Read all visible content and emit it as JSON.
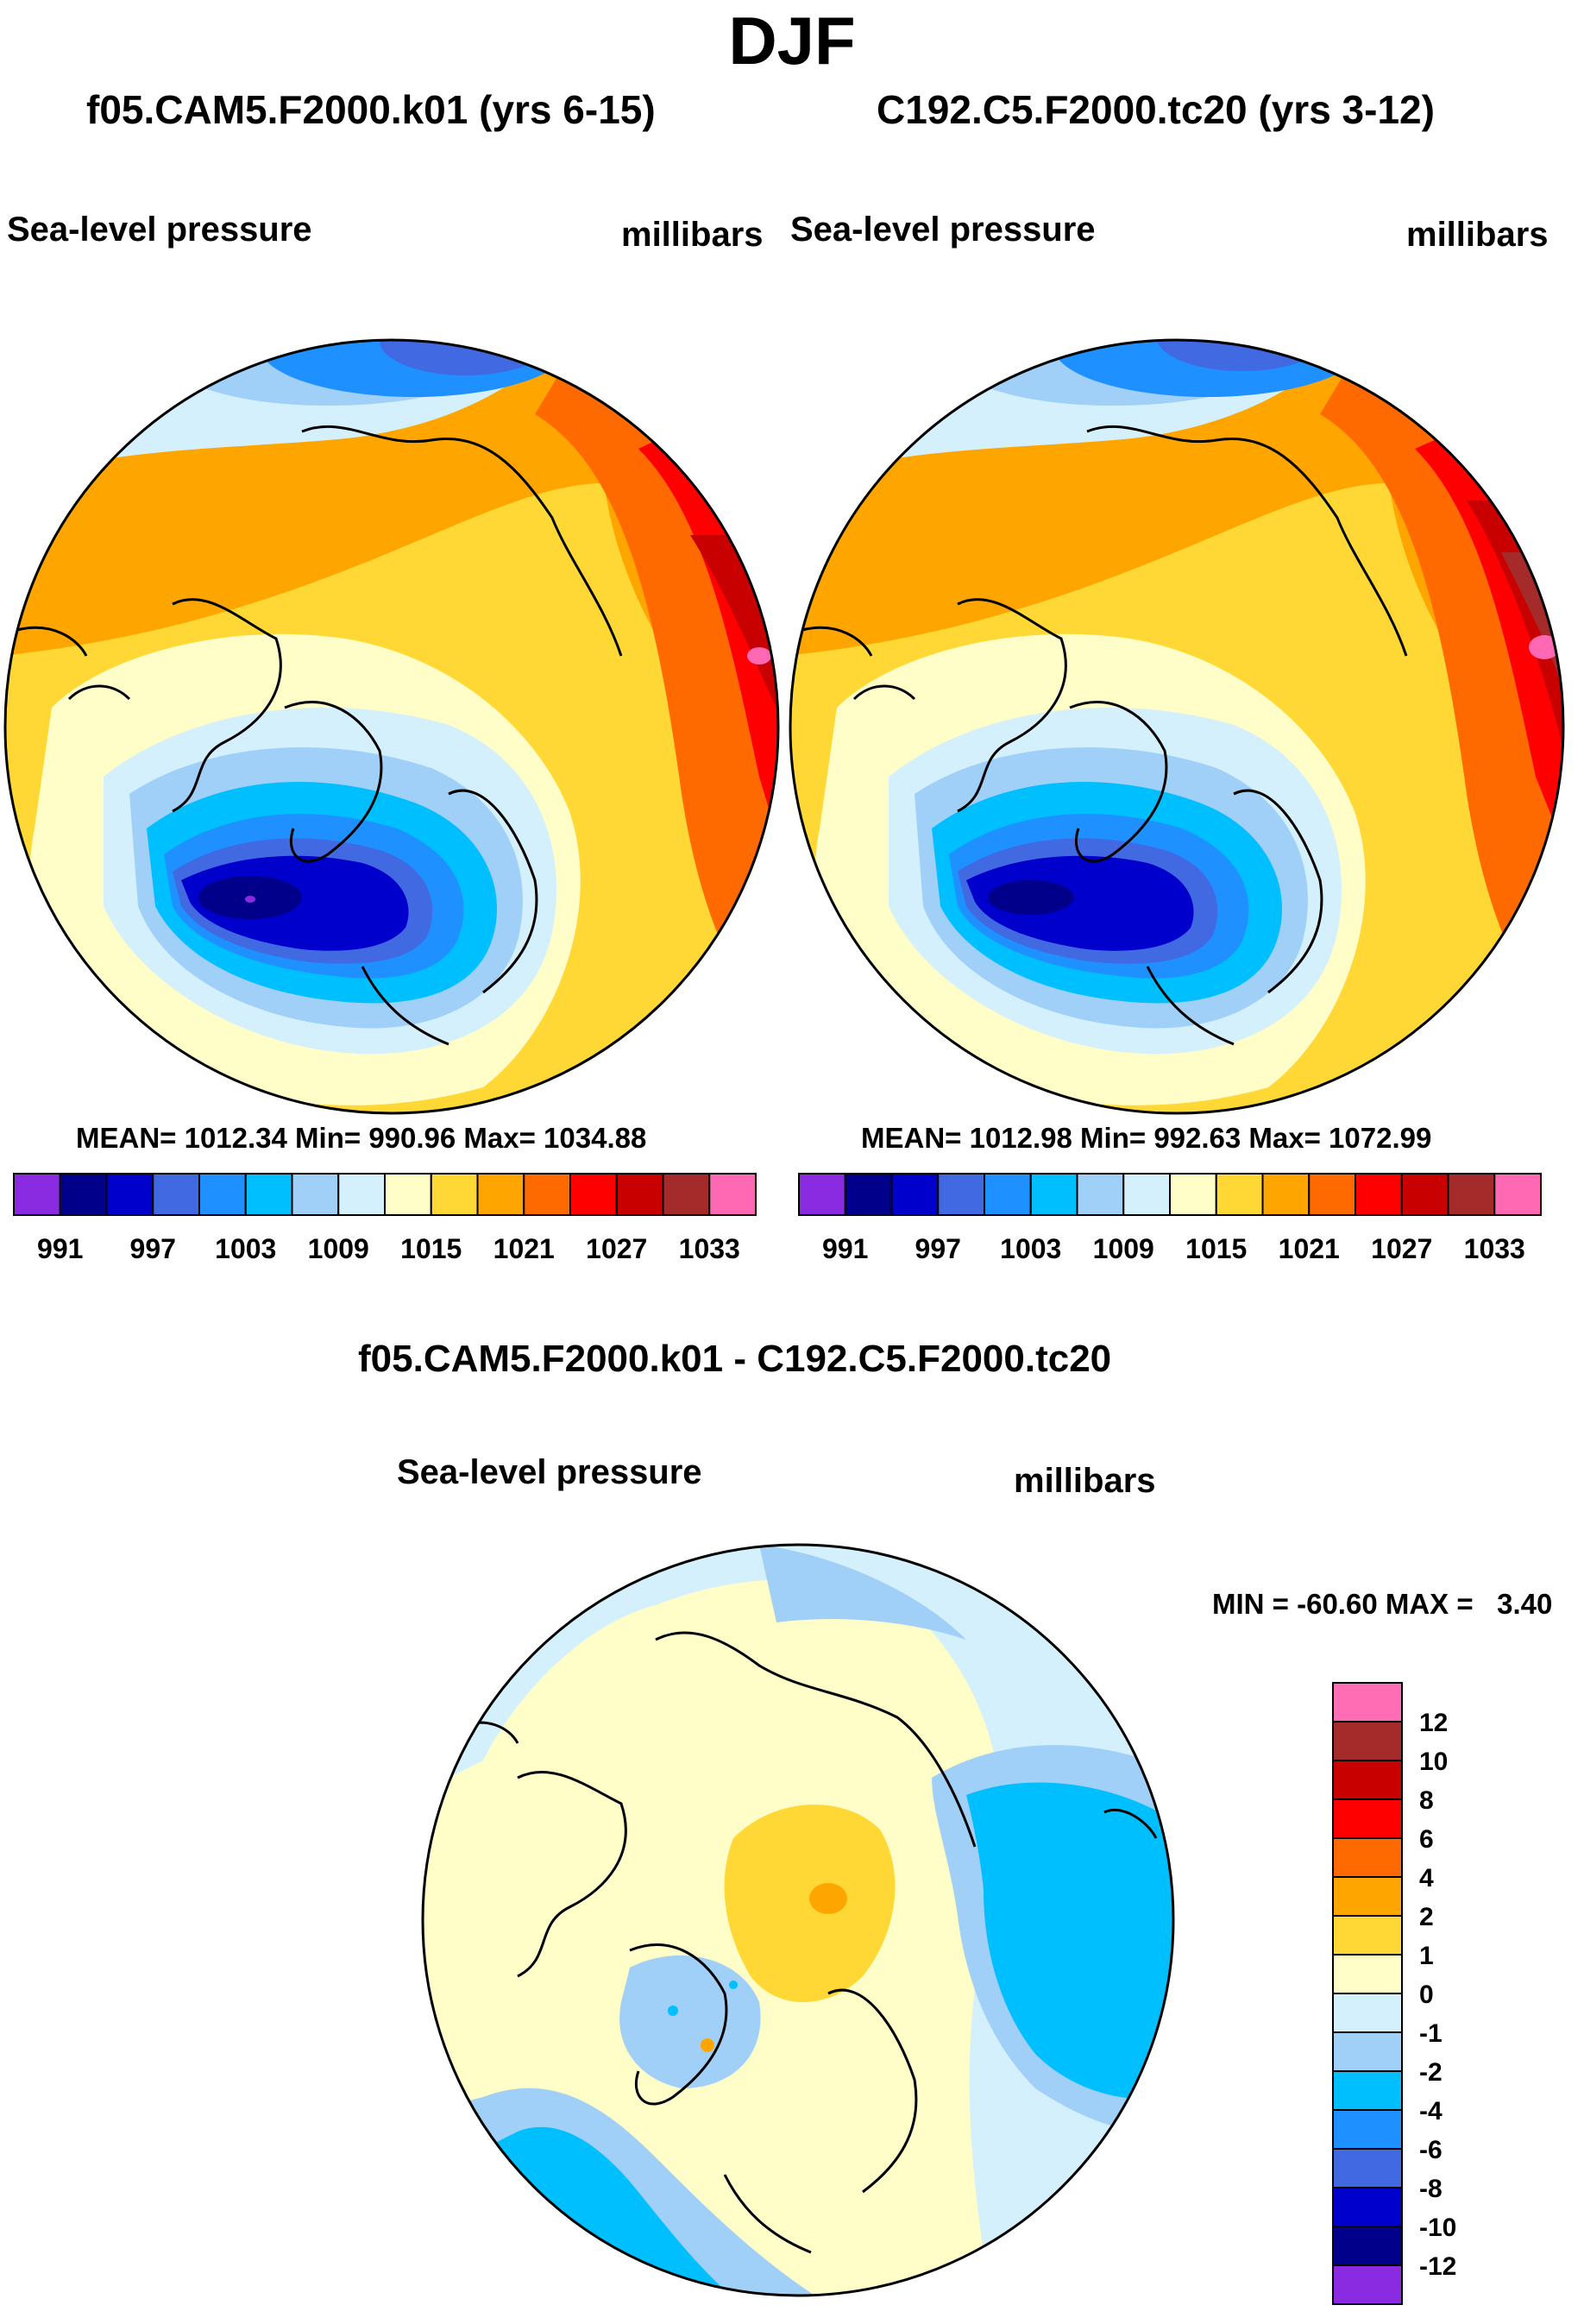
{
  "page_title": "DJF",
  "chart_data": [
    {
      "type": "contour-map",
      "projection": "north-polar-stereographic",
      "title": "f05.CAM5.F2000.k01 (yrs 6-15)",
      "left_label": "Sea-level pressure",
      "right_label": "millibars",
      "stats": {
        "mean": 1012.34,
        "min": 990.96,
        "max": 1034.88
      },
      "stats_text": "MEAN= 1012.34  Min= 990.96  Max= 1034.88",
      "colorbar": {
        "levels": [
          991,
          994,
          997,
          1000,
          1003,
          1006,
          1009,
          1012,
          1015,
          1018,
          1021,
          1024,
          1027,
          1030,
          1033
        ],
        "tick_labels": [
          "991",
          "997",
          "1003",
          "1009",
          "1015",
          "1021",
          "1027",
          "1033"
        ]
      },
      "features": {
        "aleutian_low": "deep blue",
        "icelandic_low": "deep blue, min ~991",
        "siberian_high": "red/pink ~1033"
      }
    },
    {
      "type": "contour-map",
      "projection": "north-polar-stereographic",
      "title": "C192.C5.F2000.tc20 (yrs 3-12)",
      "left_label": "Sea-level pressure",
      "right_label": "millibars",
      "stats": {
        "mean": 1012.98,
        "min": 992.63,
        "max": 1072.99
      },
      "stats_text": "MEAN= 1012.98  Min= 992.63  Max= 1072.99",
      "colorbar": {
        "levels": [
          991,
          994,
          997,
          1000,
          1003,
          1006,
          1009,
          1012,
          1015,
          1018,
          1021,
          1024,
          1027,
          1030,
          1033
        ],
        "tick_labels": [
          "991",
          "997",
          "1003",
          "1009",
          "1015",
          "1021",
          "1027",
          "1033"
        ]
      }
    },
    {
      "type": "contour-map",
      "projection": "north-polar-stereographic",
      "title": "f05.CAM5.F2000.k01 - C192.C5.F2000.tc20",
      "left_label": "Sea-level pressure",
      "right_label": "millibars",
      "stats": {
        "min": -60.6,
        "max": 3.4
      },
      "stats_text": "MIN = -60.60 MAX =   3.40",
      "colorbar": {
        "levels": [
          -12,
          -10,
          -8,
          -6,
          -4,
          -2,
          -1,
          0,
          1,
          2,
          4,
          6,
          8,
          10,
          12
        ],
        "tick_labels": [
          "12",
          "10",
          "8",
          "6",
          "4",
          "2",
          "1",
          "0",
          "-1",
          "-2",
          "-4",
          "-6",
          "-8",
          "-10",
          "-12"
        ]
      }
    }
  ],
  "colors": {
    "abs_palette": [
      "#8a2be2",
      "#00008b",
      "#0000cd",
      "#4169e1",
      "#1e90ff",
      "#00bfff",
      "#a0d0f8",
      "#d4f0fc",
      "#fffdc8",
      "#ffd835",
      "#ffa500",
      "#ff6a00",
      "#ff0000",
      "#c80000",
      "#a52a2a",
      "#ff69b4"
    ],
    "diff_palette_top_to_bottom": [
      "#ff6eb4",
      "#a52a2a",
      "#c80000",
      "#ff0000",
      "#ff6a00",
      "#ffa500",
      "#ffd835",
      "#fffdc8",
      "#d4f0fc",
      "#a0d0f8",
      "#00bfff",
      "#1e90ff",
      "#4169e1",
      "#0000cd",
      "#00008b",
      "#8a2be2"
    ]
  }
}
